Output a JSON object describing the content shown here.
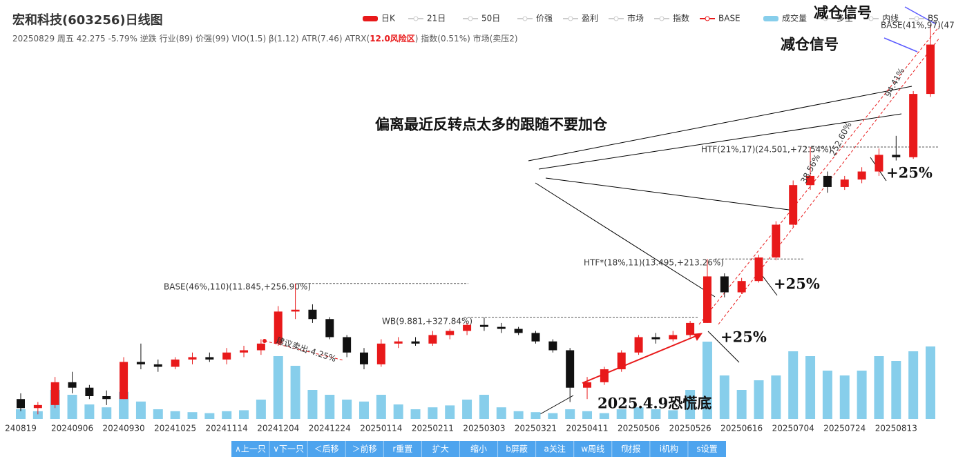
{
  "chart_data": {
    "type": "candlestick",
    "title": "宏和科技(603256)日线图",
    "subtitle_parts": [
      "20250829 周五 42.275 -5.79% 逆跌 行业(89) 价强(99) VIO(1.5) β(1.12) ATR(7.46) ATRX(",
      "12.0风险区",
      ") 指数(0.51%) 市场(卖压2)"
    ],
    "legend": [
      {
        "name": "日K",
        "color": "#e8191a"
      },
      {
        "name": "21日",
        "color": "#cccccc"
      },
      {
        "name": "50日",
        "color": "#cccccc"
      },
      {
        "name": "价强",
        "color": "#cccccc"
      },
      {
        "name": "盈利",
        "color": "#cccccc"
      },
      {
        "name": "市场",
        "color": "#cccccc"
      },
      {
        "name": "指数",
        "color": "#cccccc"
      },
      {
        "name": "BASE",
        "color": "#e8191a"
      },
      {
        "name": "成交量",
        "color": "#87ceeb"
      },
      {
        "name": "多空",
        "color": "#cccccc"
      },
      {
        "name": "内线",
        "color": "#cccccc"
      },
      {
        "name": "BS",
        "color": "#cccccc"
      }
    ],
    "categories": [
      "240819",
      null,
      null,
      "20240906",
      null,
      null,
      "20240930",
      null,
      null,
      "20241025",
      null,
      null,
      "20241114",
      null,
      null,
      "20241204",
      null,
      null,
      "20241224",
      null,
      null,
      "20250114",
      null,
      null,
      "20250211",
      null,
      null,
      "20250303",
      null,
      null,
      "20250321",
      null,
      null,
      "20250411",
      null,
      null,
      "20250506",
      null,
      null,
      "20250526",
      null,
      null,
      "20250616",
      null,
      null,
      "20250704",
      null,
      null,
      "20250724",
      null,
      null,
      "20250813",
      null,
      null
    ],
    "open": [
      6.4,
      6.1,
      6.2,
      7.0,
      6.8,
      6.5,
      6.4,
      7.8,
      7.7,
      7.6,
      7.9,
      8.0,
      7.9,
      8.2,
      8.3,
      8.6,
      10.2,
      10.3,
      9.8,
      8.9,
      8.2,
      7.7,
      8.6,
      8.7,
      8.6,
      9.0,
      9.2,
      9.5,
      9.4,
      9.3,
      9.1,
      8.7,
      8.3,
      6.8,
      7.0,
      7.5,
      8.2,
      8.9,
      8.8,
      9.0,
      9.6,
      12.3,
      11.3,
      12.0,
      13.6,
      16.2,
      20.0,
      21.0,
      19.8,
      20.6,
      21.5,
      23.5,
      23.2,
      32.5
    ],
    "high": [
      6.6,
      6.3,
      7.2,
      7.4,
      6.9,
      6.7,
      8.0,
      8.6,
      7.9,
      8.0,
      8.2,
      8.2,
      8.4,
      8.5,
      8.8,
      10.5,
      11.845,
      10.6,
      9.9,
      9.0,
      8.4,
      8.8,
      8.9,
      8.9,
      9.2,
      9.3,
      9.6,
      9.881,
      9.6,
      9.4,
      9.2,
      8.8,
      8.4,
      7.2,
      7.6,
      8.3,
      9.0,
      9.1,
      9.2,
      9.7,
      13.495,
      12.5,
      12.2,
      13.8,
      16.5,
      20.5,
      24.501,
      21.5,
      21.0,
      22.0,
      24.3,
      26.0,
      33.0,
      47
    ],
    "low": [
      6.0,
      5.9,
      6.1,
      6.6,
      6.4,
      6.2,
      6.4,
      7.5,
      7.4,
      7.5,
      7.7,
      7.8,
      7.7,
      8.0,
      8.1,
      8.5,
      9.8,
      9.6,
      8.8,
      8.0,
      7.5,
      7.6,
      8.4,
      8.5,
      8.5,
      8.8,
      9.0,
      9.2,
      9.1,
      9.0,
      8.6,
      8.2,
      6.3,
      6.4,
      6.9,
      7.4,
      8.1,
      8.6,
      8.7,
      8.9,
      9.6,
      11.0,
      11.2,
      11.9,
      13.4,
      16.0,
      19.5,
      19.2,
      19.5,
      20.2,
      21.0,
      22.8,
      23.0,
      32.0
    ],
    "close": [
      6.1,
      6.2,
      7.0,
      6.8,
      6.5,
      6.4,
      7.8,
      7.7,
      7.6,
      7.9,
      8.0,
      7.9,
      8.2,
      8.3,
      8.6,
      10.2,
      10.3,
      9.8,
      8.9,
      8.2,
      7.7,
      8.6,
      8.7,
      8.6,
      9.0,
      9.2,
      9.5,
      9.4,
      9.3,
      9.1,
      8.7,
      8.3,
      6.8,
      7.0,
      7.5,
      8.2,
      8.9,
      8.8,
      9.0,
      9.6,
      12.3,
      11.3,
      12.0,
      13.6,
      16.2,
      20.0,
      21.0,
      19.8,
      20.6,
      21.5,
      23.5,
      23.2,
      32.5,
      42.275
    ],
    "volume": [
      10,
      8,
      30,
      25,
      15,
      12,
      28,
      18,
      10,
      8,
      7,
      6,
      8,
      9,
      20,
      65,
      55,
      30,
      25,
      20,
      18,
      25,
      15,
      10,
      12,
      14,
      20,
      25,
      12,
      8,
      7,
      6,
      10,
      8,
      6,
      10,
      12,
      10,
      9,
      30,
      80,
      45,
      30,
      40,
      45,
      70,
      65,
      50,
      45,
      50,
      65,
      60,
      70,
      75
    ],
    "up_color": "#e8191a",
    "down_color": "#111111",
    "volume_color": "#87ceeb",
    "log_scale": true,
    "ylim": [
      5.8,
      48
    ],
    "vlim": [
      0,
      100
    ],
    "levels": [
      {
        "label": "BASE(46%,110)(11.845,+256.90%)",
        "value": 11.845
      },
      {
        "label": "WB(9.881,+327.84%)",
        "value": 9.881
      },
      {
        "label": "HTF*(18%,11)(13.495,+213.26%)",
        "value": 13.495
      },
      {
        "label": "HTF(21%,17)(24.501,+72.54%)",
        "value": 24.501
      }
    ],
    "chart_labels": [
      "BASE(41%,97)(47",
      "建议卖出-4.25%",
      "38.56%",
      "252.60%",
      "94.41%"
    ],
    "annotations": [
      "减仓信号",
      "减仓信号",
      "偏离最近反转点太多的跟随不要加仓",
      "+25%",
      "+25%",
      "+25%",
      "2025.4.9恐慌底"
    ],
    "buttons": [
      "∧上一只",
      "∨下一只",
      "＜后移",
      "＞前移",
      "r重置",
      "扩大",
      "缩小",
      "b屏蔽",
      "a关注",
      "w周线",
      "f财报",
      "i机构",
      "s设置"
    ]
  }
}
